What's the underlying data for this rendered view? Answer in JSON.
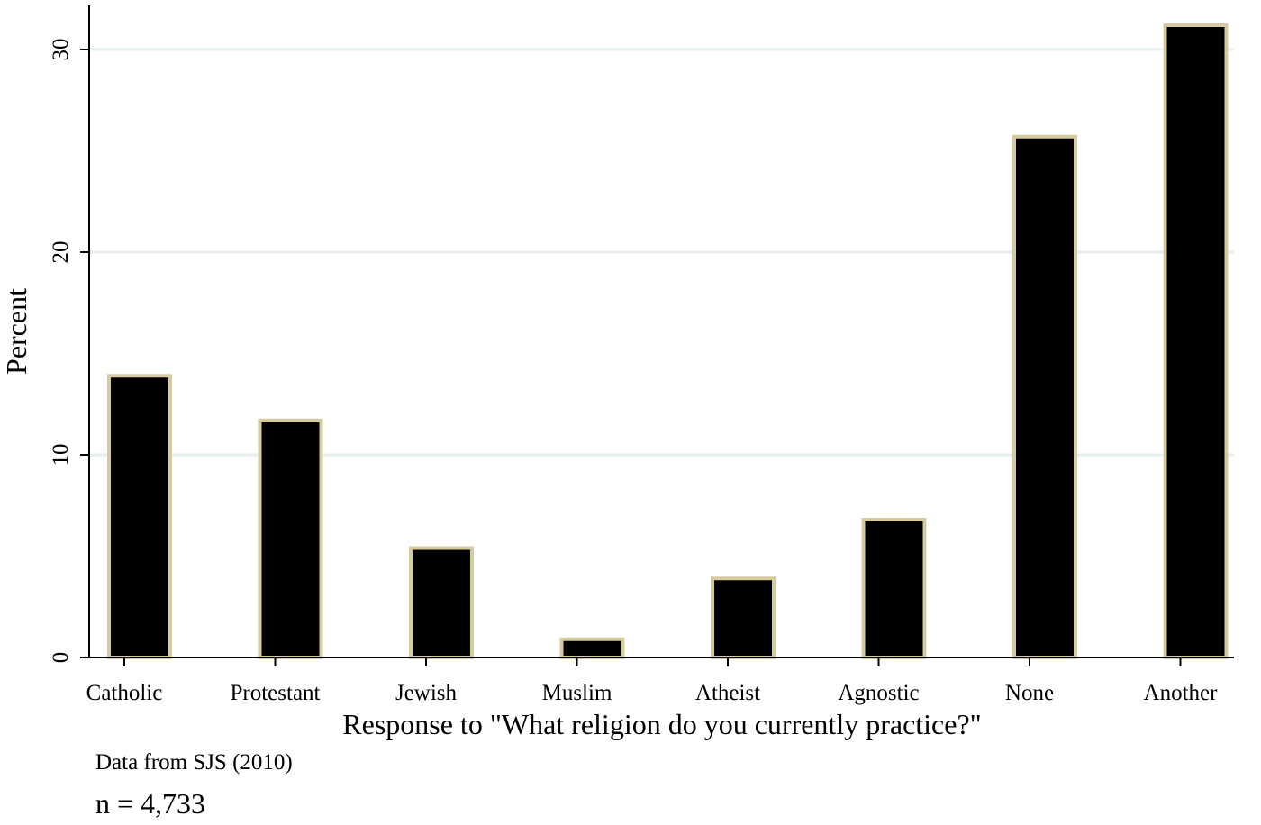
{
  "chart_data": {
    "type": "bar",
    "categories": [
      "Catholic",
      "Protestant",
      "Jewish",
      "Muslim",
      "Atheist",
      "Agnostic",
      "None",
      "Another"
    ],
    "values": [
      13.9,
      11.7,
      5.4,
      0.9,
      3.9,
      6.8,
      25.7,
      31.2
    ],
    "xlabel": "Response to \"What religion do you currently practice?\"",
    "ylabel": "Percent",
    "ylim": [
      0,
      32
    ],
    "yticks": [
      0,
      10,
      20,
      30
    ],
    "grid": true,
    "bar_fill": "#000000",
    "bar_edge": "#d6cba0",
    "grid_color": "#e6edee"
  },
  "notes": {
    "source": "Data from SJS (2010)",
    "n": "n = 4,733"
  }
}
